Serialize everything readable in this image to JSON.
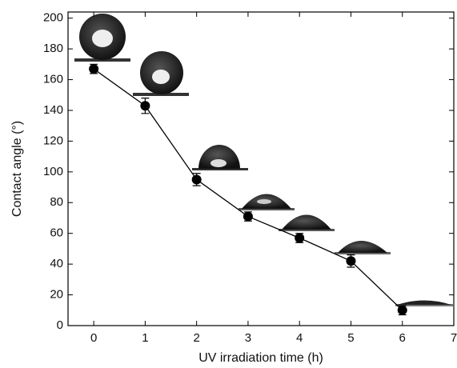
{
  "chart_data": {
    "type": "line",
    "xlabel": "UV irradiation time (h)",
    "ylabel": "Contact angle (°)",
    "x": [
      0,
      1,
      2,
      3,
      4,
      5,
      6
    ],
    "series": [
      {
        "color": "#000000",
        "values": [
          167,
          143,
          95,
          71,
          57,
          42,
          10
        ],
        "errors": [
          3,
          5,
          4,
          3,
          3,
          4,
          3
        ]
      }
    ],
    "xlim": [
      -0.5,
      7
    ],
    "xticks": [
      0,
      1,
      2,
      3,
      4,
      5,
      6,
      7
    ],
    "ylim": [
      0,
      204
    ],
    "yticks": [
      0,
      20,
      40,
      60,
      80,
      100,
      120,
      140,
      160,
      180,
      200
    ]
  }
}
